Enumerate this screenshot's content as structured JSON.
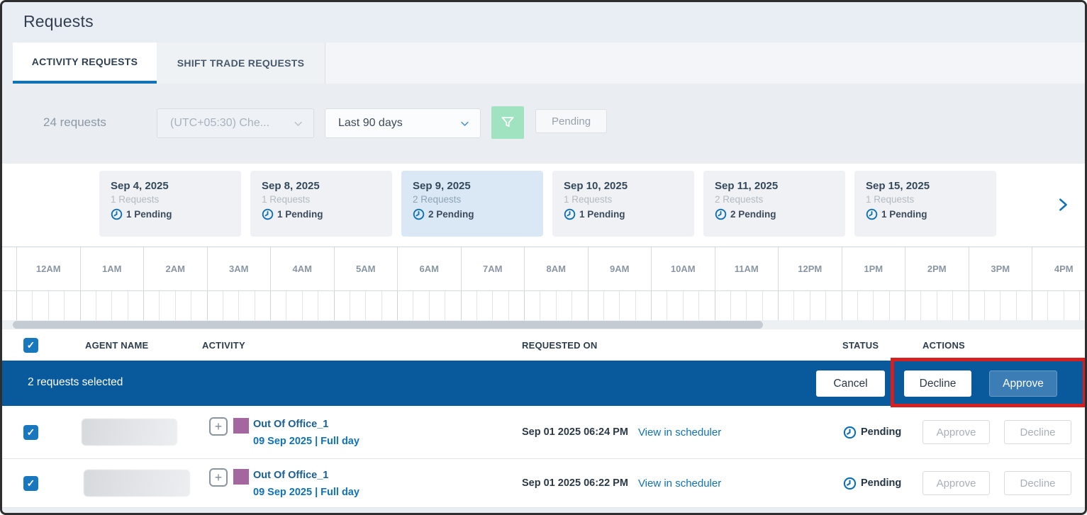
{
  "page": {
    "title": "Requests"
  },
  "tabs": [
    {
      "label": "ACTIVITY REQUESTS",
      "active": true
    },
    {
      "label": "SHIFT TRADE REQUESTS",
      "active": false
    }
  ],
  "filters": {
    "count_label": "24 requests",
    "timezone_dropdown_value": "(UTC+05:30) Che...",
    "range_dropdown_value": "Last 90 days",
    "filter_chip": "Pending"
  },
  "date_cards": [
    {
      "date": "Sep 4, 2025",
      "requests": "1 Requests",
      "pending": "1 Pending",
      "selected": false
    },
    {
      "date": "Sep 8, 2025",
      "requests": "1 Requests",
      "pending": "1 Pending",
      "selected": false
    },
    {
      "date": "Sep 9, 2025",
      "requests": "2 Requests",
      "pending": "2 Pending",
      "selected": true
    },
    {
      "date": "Sep 10, 2025",
      "requests": "1 Requests",
      "pending": "1 Pending",
      "selected": false
    },
    {
      "date": "Sep 11, 2025",
      "requests": "2 Requests",
      "pending": "2 Pending",
      "selected": false
    },
    {
      "date": "Sep 15, 2025",
      "requests": "1 Requests",
      "pending": "1 Pending",
      "selected": false
    }
  ],
  "timeline": {
    "hours": [
      "12AM",
      "1AM",
      "2AM",
      "3AM",
      "4AM",
      "5AM",
      "6AM",
      "7AM",
      "8AM",
      "9AM",
      "10AM",
      "11AM",
      "12PM",
      "1PM",
      "2PM",
      "3PM",
      "4PM"
    ],
    "ticks_per_hour": 4
  },
  "table": {
    "columns": {
      "agent": "AGENT NAME",
      "activity": "ACTIVITY",
      "requested_on": "REQUESTED ON",
      "status": "STATUS",
      "actions": "ACTIONS"
    },
    "selection_bar": {
      "text": "2 requests selected",
      "cancel_label": "Cancel",
      "decline_label": "Decline",
      "approve_label": "Approve"
    },
    "rows": [
      {
        "activity_name": "Out Of Office_1",
        "activity_detail": "09 Sep 2025 | Full day",
        "requested_on": "Sep 01 2025 06:24 PM",
        "link": "View in scheduler",
        "status": "Pending",
        "approve_label": "Approve",
        "decline_label": "Decline"
      },
      {
        "activity_name": "Out Of Office_1",
        "activity_detail": "09 Sep 2025 | Full day",
        "requested_on": "Sep 01 2025 06:22 PM",
        "link": "View in scheduler",
        "status": "Pending",
        "approve_label": "Approve",
        "decline_label": "Decline"
      }
    ]
  },
  "icons": {
    "filter": "funnel-icon",
    "clock": "clock-pending-icon",
    "chevron_right": "chevron-right-icon",
    "chevron_down": "chevron-down-icon",
    "plus": "expand-plus-icon",
    "check": "checkmark-icon"
  },
  "colors": {
    "accent_blue": "#1273b4",
    "selection_bar_blue": "#085a9d",
    "annotation_red": "#d6201f",
    "filter_green": "#9fe3c0",
    "activity_swatch_purple": "#a4669f",
    "link_blue": "#0f72b6",
    "pending_clock_blue": "#0d6fb8",
    "approve_button_blue": "#3b7db4"
  }
}
